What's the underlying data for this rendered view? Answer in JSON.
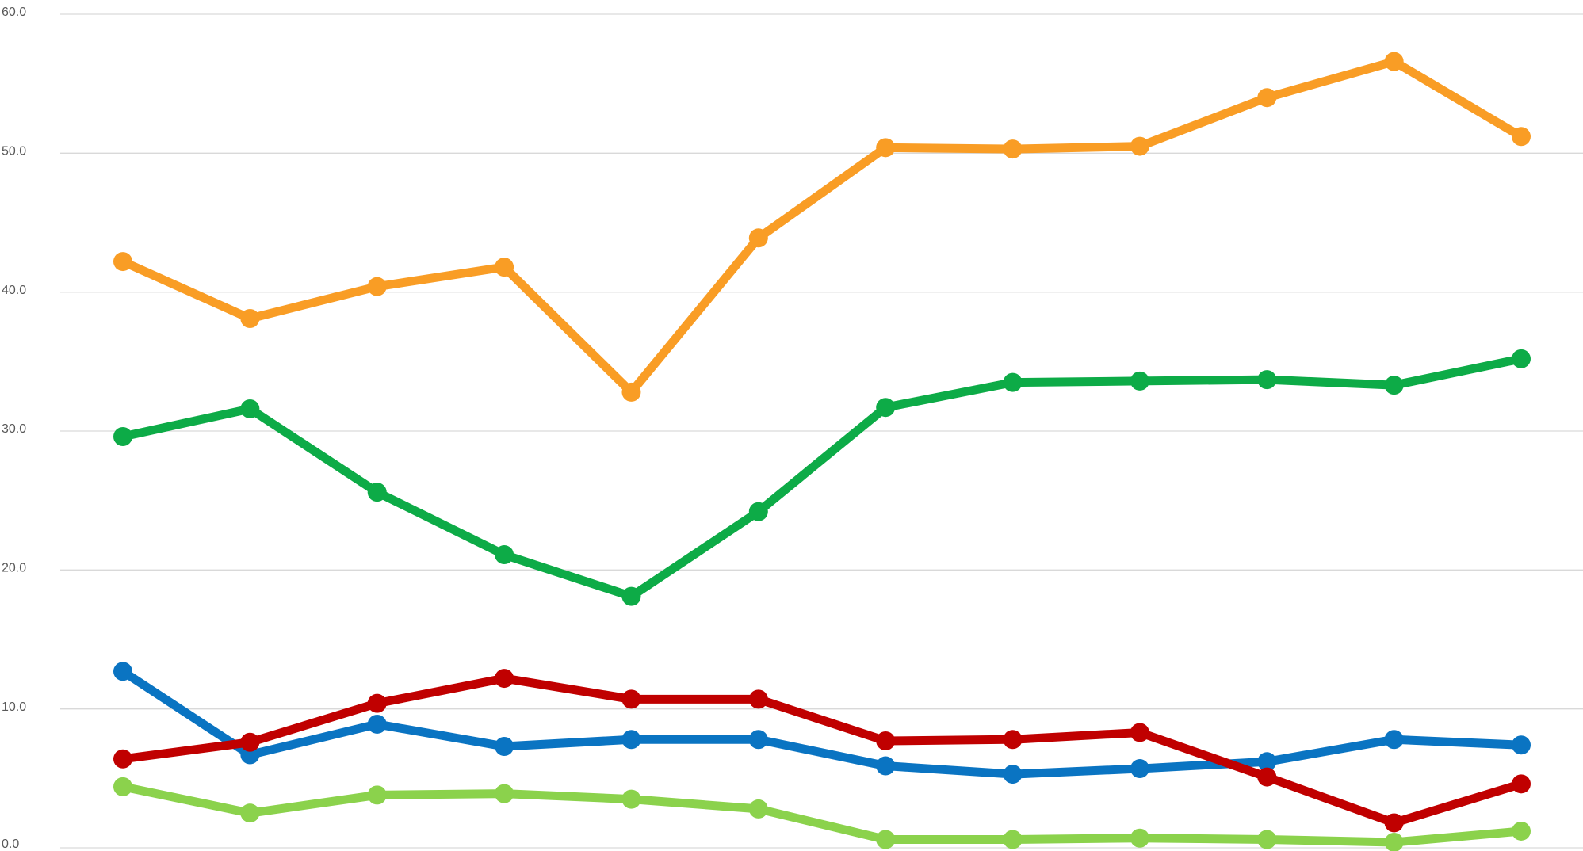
{
  "chart_data": {
    "type": "line",
    "categories": [
      null,
      null,
      null,
      null,
      null,
      null,
      null,
      null,
      null,
      null,
      null,
      null
    ],
    "ylim": [
      0,
      60
    ],
    "yticks": [
      {
        "value": 0,
        "label": "0.0"
      },
      {
        "value": 10,
        "label": "10.0"
      },
      {
        "value": 20,
        "label": "20.0"
      },
      {
        "value": 30,
        "label": "30.0"
      },
      {
        "value": 40,
        "label": "40.0"
      },
      {
        "value": 50,
        "label": "50.0"
      },
      {
        "value": 60,
        "label": "60.0"
      }
    ],
    "grid": true,
    "series": [
      {
        "color": "#f99d25",
        "values": [
          42.2,
          38.1,
          40.4,
          41.8,
          32.8,
          43.9,
          50.4,
          50.3,
          50.5,
          54.0,
          56.6,
          51.2
        ]
      },
      {
        "color": "#0dab47",
        "values": [
          29.6,
          31.6,
          25.6,
          21.1,
          18.1,
          24.2,
          31.7,
          33.5,
          33.6,
          33.7,
          33.3,
          35.2
        ]
      },
      {
        "color": "#0a74c2",
        "values": [
          12.7,
          6.7,
          8.9,
          7.3,
          7.8,
          7.8,
          5.9,
          5.3,
          5.7,
          6.2,
          7.8,
          7.4
        ]
      },
      {
        "color": "#c00000",
        "values": [
          6.4,
          7.6,
          10.4,
          12.2,
          10.7,
          10.7,
          7.7,
          7.8,
          8.3,
          5.1,
          1.8,
          4.6
        ]
      },
      {
        "color": "#8bd24c",
        "values": [
          4.4,
          2.5,
          3.8,
          3.9,
          3.5,
          2.8,
          0.6,
          0.6,
          0.7,
          0.6,
          0.4,
          1.2
        ]
      }
    ]
  }
}
